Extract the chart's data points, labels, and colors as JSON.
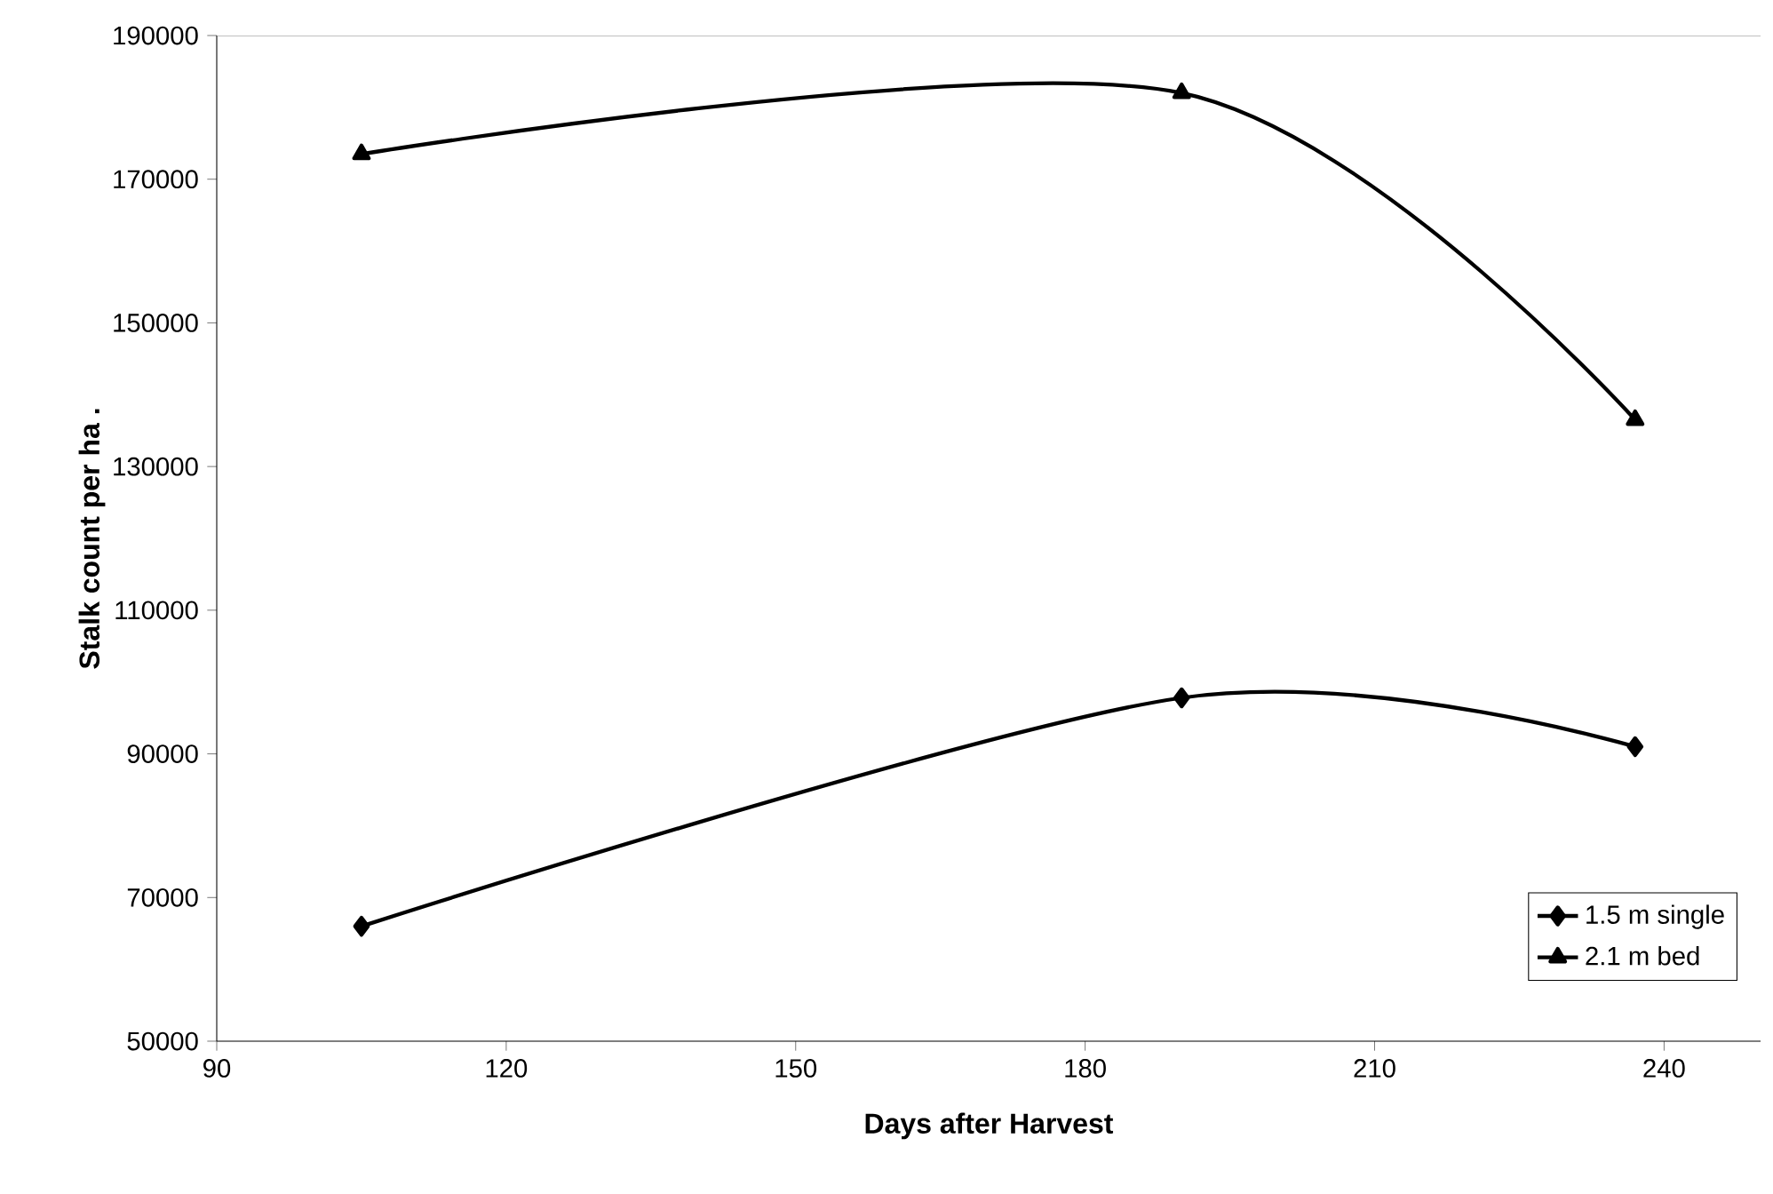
{
  "chart_data": {
    "type": "line",
    "xlabel": "Days after Harvest",
    "ylabel": "Stalk count per ha .",
    "xlim": [
      90,
      250
    ],
    "xticks": [
      90,
      120,
      150,
      180,
      210,
      240
    ],
    "ylim": [
      50000,
      190000
    ],
    "yticks": [
      50000,
      70000,
      90000,
      110000,
      130000,
      150000,
      170000,
      190000
    ],
    "grid": false,
    "legend": "bottom right",
    "series": [
      {
        "name": "1.5 m single",
        "color": "#000000",
        "marker": "diamond",
        "x": [
          105,
          190,
          237
        ],
        "values": [
          66000,
          97800,
          91000
        ]
      },
      {
        "name": "2.1 m bed",
        "color": "#000000",
        "marker": "triangle",
        "x": [
          105,
          190,
          237
        ],
        "values": [
          173500,
          182000,
          136500
        ]
      }
    ]
  }
}
